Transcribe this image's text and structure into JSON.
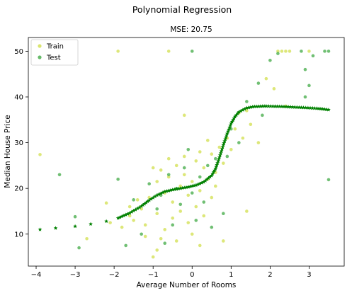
{
  "chart_data": {
    "type": "scatter",
    "title": "Polynomial Regression",
    "subtitle": "MSE: 20.75",
    "xlabel": "Average Number of Rooms",
    "ylabel": "Median House Price",
    "xlim": [
      -4.2,
      3.9
    ],
    "ylim": [
      3.0,
      53.0
    ],
    "xticks": [
      -4,
      -3,
      -2,
      -1,
      0,
      1,
      2,
      3
    ],
    "yticks": [
      10,
      20,
      30,
      40,
      50
    ],
    "legend_position": "top-left",
    "grid": false,
    "colors": {
      "train": "#d4e157",
      "test": "#4caf50",
      "fit": "#008000"
    },
    "series": [
      {
        "name": "Train",
        "kind": "points",
        "points": [
          [
            -1.9,
            50.0
          ],
          [
            -0.6,
            50.0
          ],
          [
            2.2,
            50.0
          ],
          [
            2.3,
            50.0
          ],
          [
            2.4,
            50.0
          ],
          [
            2.5,
            50.0
          ],
          [
            3.0,
            50.0
          ],
          [
            1.9,
            44.0
          ],
          [
            2.1,
            41.8
          ],
          [
            2.4,
            38.0
          ],
          [
            1.4,
            37.0
          ],
          [
            1.2,
            36.5
          ],
          [
            -0.2,
            36.0
          ],
          [
            -3.9,
            27.4
          ],
          [
            -2.2,
            16.8
          ],
          [
            -1.6,
            14.0
          ],
          [
            -0.9,
            6.5
          ],
          [
            0.2,
            7.5
          ],
          [
            0.8,
            8.5
          ],
          [
            -2.7,
            9.0
          ],
          [
            -2.1,
            12.5
          ],
          [
            -1.2,
            9.5
          ],
          [
            -1.0,
            5.0
          ],
          [
            1.4,
            15.0
          ],
          [
            -1.3,
            15.5
          ],
          [
            -1.1,
            18.0
          ],
          [
            -0.9,
            21.5
          ],
          [
            -0.8,
            24.0
          ],
          [
            -0.7,
            19.0
          ],
          [
            -0.6,
            22.5
          ],
          [
            -0.5,
            17.0
          ],
          [
            -0.4,
            25.0
          ],
          [
            -0.3,
            20.5
          ],
          [
            -0.2,
            23.0
          ],
          [
            -0.1,
            18.5
          ],
          [
            0.0,
            21.5
          ],
          [
            0.1,
            26.0
          ],
          [
            0.2,
            19.5
          ],
          [
            0.3,
            24.5
          ],
          [
            0.4,
            22.0
          ],
          [
            0.5,
            27.5
          ],
          [
            0.6,
            23.5
          ],
          [
            0.7,
            29.0
          ],
          [
            0.8,
            25.5
          ],
          [
            0.9,
            31.0
          ],
          [
            1.0,
            28.5
          ],
          [
            1.1,
            33.0
          ],
          [
            1.3,
            31.0
          ],
          [
            -1.5,
            13.0
          ],
          [
            -1.4,
            17.5
          ],
          [
            -1.2,
            12.0
          ],
          [
            -0.9,
            14.5
          ],
          [
            -0.7,
            11.0
          ],
          [
            -0.5,
            13.5
          ],
          [
            -0.3,
            15.0
          ],
          [
            -0.1,
            12.5
          ],
          [
            0.1,
            16.0
          ],
          [
            0.3,
            14.0
          ],
          [
            0.5,
            18.0
          ],
          [
            -0.8,
            9.0
          ],
          [
            -0.4,
            8.5
          ],
          [
            0.0,
            10.0
          ],
          [
            -1.8,
            11.5
          ],
          [
            -1.6,
            16.0
          ],
          [
            -0.6,
            26.5
          ],
          [
            0.2,
            28.0
          ],
          [
            0.4,
            30.5
          ],
          [
            1.5,
            34.0
          ],
          [
            1.7,
            30.0
          ],
          [
            -1.0,
            24.5
          ],
          [
            -0.2,
            27.0
          ],
          [
            0.6,
            20.5
          ]
        ]
      },
      {
        "name": "Test",
        "kind": "points",
        "points": [
          [
            0.0,
            50.0
          ],
          [
            2.8,
            50.0
          ],
          [
            3.1,
            49.0
          ],
          [
            3.4,
            50.0
          ],
          [
            3.5,
            50.0
          ],
          [
            2.2,
            49.5
          ],
          [
            2.0,
            48.0
          ],
          [
            1.7,
            43.0
          ],
          [
            2.9,
            46.0
          ],
          [
            3.0,
            42.5
          ],
          [
            2.9,
            40.0
          ],
          [
            1.0,
            33.0
          ],
          [
            1.8,
            36.0
          ],
          [
            -3.4,
            23.0
          ],
          [
            -3.0,
            13.8
          ],
          [
            -2.9,
            7.0
          ],
          [
            -1.9,
            22.0
          ],
          [
            3.5,
            21.9
          ],
          [
            0.8,
            14.5
          ],
          [
            -1.1,
            21.0
          ],
          [
            -0.8,
            18.5
          ],
          [
            -0.6,
            23.0
          ],
          [
            -0.4,
            20.0
          ],
          [
            -0.2,
            24.5
          ],
          [
            0.0,
            19.0
          ],
          [
            0.2,
            22.5
          ],
          [
            0.4,
            25.0
          ],
          [
            0.6,
            26.5
          ],
          [
            -0.9,
            15.5
          ],
          [
            -0.5,
            12.0
          ],
          [
            -0.3,
            16.5
          ],
          [
            0.1,
            13.0
          ],
          [
            0.3,
            17.0
          ],
          [
            0.5,
            11.5
          ],
          [
            -1.3,
            10.0
          ],
          [
            -0.7,
            8.0
          ],
          [
            1.2,
            30.0
          ],
          [
            -1.5,
            17.5
          ],
          [
            -1.7,
            7.5
          ],
          [
            0.9,
            27.0
          ],
          [
            1.4,
            39.0
          ],
          [
            -0.1,
            28.5
          ]
        ]
      },
      {
        "name": "",
        "kind": "fit-curve",
        "points": [
          [
            -3.9,
            11.0
          ],
          [
            -3.5,
            11.3
          ],
          [
            -3.0,
            11.7
          ],
          [
            -2.6,
            12.2
          ],
          [
            -2.2,
            12.8
          ],
          [
            -1.9,
            13.5
          ],
          [
            -1.6,
            14.6
          ],
          [
            -1.3,
            16.1
          ],
          [
            -1.1,
            17.4
          ],
          [
            -0.9,
            18.5
          ],
          [
            -0.7,
            19.3
          ],
          [
            -0.5,
            19.7
          ],
          [
            -0.3,
            20.0
          ],
          [
            -0.1,
            20.3
          ],
          [
            0.1,
            20.7
          ],
          [
            0.3,
            21.4
          ],
          [
            0.5,
            22.8
          ],
          [
            0.6,
            24.3
          ],
          [
            0.7,
            26.8
          ],
          [
            0.8,
            29.5
          ],
          [
            0.9,
            32.0
          ],
          [
            1.0,
            34.2
          ],
          [
            1.1,
            35.7
          ],
          [
            1.2,
            36.7
          ],
          [
            1.4,
            37.6
          ],
          [
            1.6,
            37.9
          ],
          [
            1.9,
            38.0
          ],
          [
            2.3,
            37.9
          ],
          [
            2.8,
            37.7
          ],
          [
            3.2,
            37.5
          ],
          [
            3.5,
            37.2
          ]
        ]
      }
    ]
  }
}
